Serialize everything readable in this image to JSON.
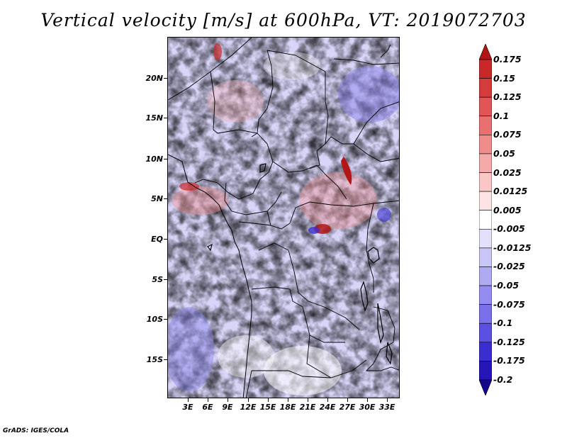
{
  "title": "Vertical velocity [m/s] at 600hPa, VT: 2019072703",
  "credit": "GrADS: IGES/COLA",
  "y_axis_labels": [
    "20N",
    "15N",
    "10N",
    "5N",
    "EQ",
    "5S",
    "10S",
    "15S"
  ],
  "x_axis_labels": [
    "3E",
    "6E",
    "9E",
    "12E",
    "15E",
    "18E",
    "21E",
    "24E",
    "27E",
    "30E",
    "33E"
  ],
  "colorbar": {
    "labels": [
      "0.175",
      "0.15",
      "0.125",
      "0.1",
      "0.075",
      "0.05",
      "0.025",
      "0.0125",
      "0.005",
      "-0.005",
      "-0.0125",
      "-0.025",
      "-0.05",
      "-0.075",
      "-0.1",
      "-0.125",
      "-0.175",
      "-0.2"
    ],
    "colors": [
      "#b31515",
      "#c82828",
      "#d43c3c",
      "#e05656",
      "#e87070",
      "#ef8d8d",
      "#f5aaaa",
      "#fac6c6",
      "#fde3e3",
      "#ffffff",
      "#e2e0fb",
      "#c9c5f7",
      "#b0aaf3",
      "#948cef",
      "#7a70ea",
      "#5c50e0",
      "#3b2ed0",
      "#2616b8",
      "#15088f"
    ]
  }
}
